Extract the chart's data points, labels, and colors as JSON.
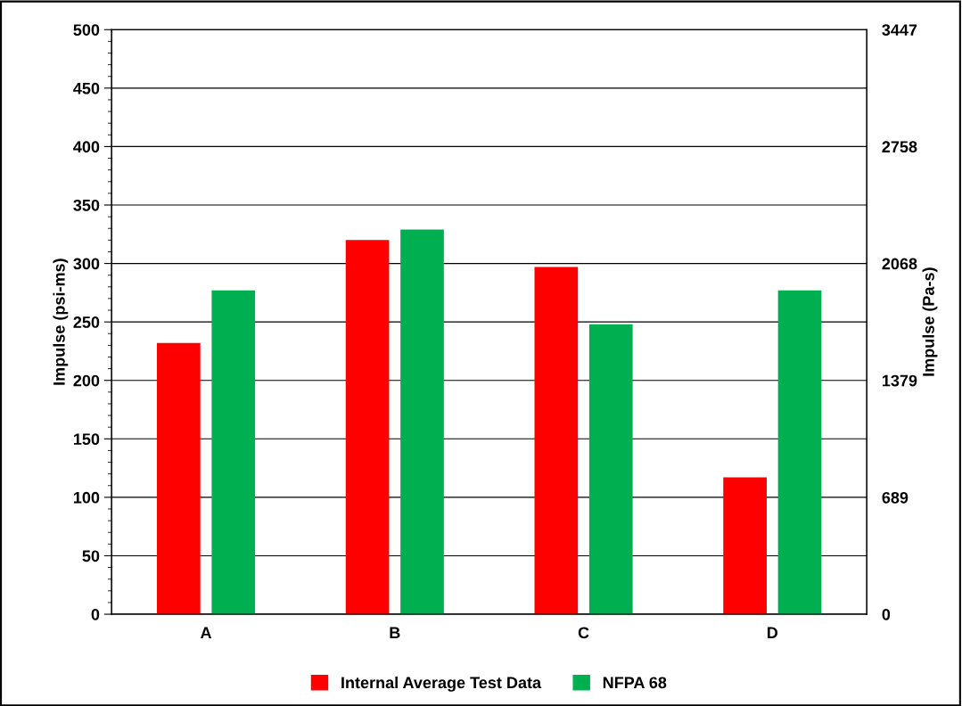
{
  "chart_data": {
    "type": "bar",
    "categories": [
      "A",
      "B",
      "C",
      "D"
    ],
    "series": [
      {
        "name": "Internal Average Test Data",
        "color": "#ff0000",
        "values": [
          232,
          320,
          297,
          117
        ]
      },
      {
        "name": "NFPA 68",
        "color": "#00b050",
        "values": [
          277,
          329,
          248,
          277
        ]
      }
    ],
    "ylabel": "Impulse (psi-ms)",
    "y2label": "Impulse (Pa-s)",
    "ylim": [
      0,
      500
    ],
    "yticks": [
      0,
      50,
      100,
      150,
      200,
      250,
      300,
      350,
      400,
      450,
      500
    ],
    "y2lim": [
      0,
      3447
    ],
    "y2ticks": [
      0,
      689,
      1379,
      2068,
      2758,
      3447
    ],
    "grid": "y",
    "legend": "bottom"
  }
}
